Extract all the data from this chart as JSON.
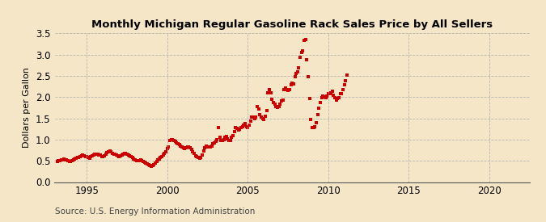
{
  "title": "Monthly Michigan Regular Gasoline Rack Sales Price by All Sellers",
  "ylabel": "Dollars per Gallon",
  "source": "Source: U.S. Energy Information Administration",
  "xlim": [
    1993.0,
    2022.5
  ],
  "ylim": [
    0.0,
    3.5
  ],
  "xticks": [
    1995,
    2000,
    2005,
    2010,
    2015,
    2020
  ],
  "yticks": [
    0.0,
    0.5,
    1.0,
    1.5,
    2.0,
    2.5,
    3.0,
    3.5
  ],
  "background_color": "#f5e6c8",
  "marker_color": "#cc0000",
  "data": [
    [
      1993.17,
      0.49
    ],
    [
      1993.25,
      0.5
    ],
    [
      1993.33,
      0.51
    ],
    [
      1993.42,
      0.52
    ],
    [
      1993.5,
      0.53
    ],
    [
      1993.58,
      0.54
    ],
    [
      1993.67,
      0.53
    ],
    [
      1993.75,
      0.52
    ],
    [
      1993.83,
      0.5
    ],
    [
      1993.92,
      0.49
    ],
    [
      1994.0,
      0.49
    ],
    [
      1994.08,
      0.5
    ],
    [
      1994.17,
      0.52
    ],
    [
      1994.25,
      0.55
    ],
    [
      1994.33,
      0.56
    ],
    [
      1994.42,
      0.57
    ],
    [
      1994.5,
      0.58
    ],
    [
      1994.58,
      0.6
    ],
    [
      1994.67,
      0.62
    ],
    [
      1994.75,
      0.63
    ],
    [
      1994.83,
      0.62
    ],
    [
      1994.92,
      0.6
    ],
    [
      1995.0,
      0.59
    ],
    [
      1995.08,
      0.57
    ],
    [
      1995.17,
      0.56
    ],
    [
      1995.25,
      0.6
    ],
    [
      1995.33,
      0.62
    ],
    [
      1995.42,
      0.63
    ],
    [
      1995.5,
      0.65
    ],
    [
      1995.58,
      0.66
    ],
    [
      1995.67,
      0.65
    ],
    [
      1995.75,
      0.64
    ],
    [
      1995.83,
      0.63
    ],
    [
      1995.92,
      0.6
    ],
    [
      1996.0,
      0.59
    ],
    [
      1996.08,
      0.61
    ],
    [
      1996.17,
      0.65
    ],
    [
      1996.25,
      0.7
    ],
    [
      1996.33,
      0.72
    ],
    [
      1996.42,
      0.73
    ],
    [
      1996.5,
      0.71
    ],
    [
      1996.58,
      0.68
    ],
    [
      1996.67,
      0.66
    ],
    [
      1996.75,
      0.65
    ],
    [
      1996.83,
      0.64
    ],
    [
      1996.92,
      0.62
    ],
    [
      1997.0,
      0.6
    ],
    [
      1997.08,
      0.61
    ],
    [
      1997.17,
      0.63
    ],
    [
      1997.25,
      0.65
    ],
    [
      1997.33,
      0.67
    ],
    [
      1997.42,
      0.68
    ],
    [
      1997.5,
      0.66
    ],
    [
      1997.58,
      0.64
    ],
    [
      1997.67,
      0.62
    ],
    [
      1997.75,
      0.6
    ],
    [
      1997.83,
      0.58
    ],
    [
      1997.92,
      0.55
    ],
    [
      1998.0,
      0.52
    ],
    [
      1998.08,
      0.5
    ],
    [
      1998.17,
      0.5
    ],
    [
      1998.25,
      0.51
    ],
    [
      1998.33,
      0.52
    ],
    [
      1998.42,
      0.51
    ],
    [
      1998.5,
      0.49
    ],
    [
      1998.58,
      0.47
    ],
    [
      1998.67,
      0.45
    ],
    [
      1998.75,
      0.43
    ],
    [
      1998.83,
      0.41
    ],
    [
      1998.92,
      0.38
    ],
    [
      1999.0,
      0.37
    ],
    [
      1999.08,
      0.39
    ],
    [
      1999.17,
      0.41
    ],
    [
      1999.25,
      0.45
    ],
    [
      1999.33,
      0.49
    ],
    [
      1999.42,
      0.52
    ],
    [
      1999.5,
      0.55
    ],
    [
      1999.58,
      0.57
    ],
    [
      1999.67,
      0.6
    ],
    [
      1999.75,
      0.63
    ],
    [
      1999.83,
      0.67
    ],
    [
      1999.92,
      0.72
    ],
    [
      2000.0,
      0.78
    ],
    [
      2000.08,
      0.83
    ],
    [
      2000.17,
      0.97
    ],
    [
      2000.25,
      1.0
    ],
    [
      2000.33,
      1.0
    ],
    [
      2000.42,
      0.98
    ],
    [
      2000.5,
      0.95
    ],
    [
      2000.58,
      0.92
    ],
    [
      2000.67,
      0.9
    ],
    [
      2000.75,
      0.88
    ],
    [
      2000.83,
      0.85
    ],
    [
      2000.92,
      0.83
    ],
    [
      2001.0,
      0.8
    ],
    [
      2001.08,
      0.78
    ],
    [
      2001.17,
      0.8
    ],
    [
      2001.25,
      0.82
    ],
    [
      2001.33,
      0.83
    ],
    [
      2001.42,
      0.8
    ],
    [
      2001.5,
      0.76
    ],
    [
      2001.58,
      0.72
    ],
    [
      2001.67,
      0.67
    ],
    [
      2001.75,
      0.62
    ],
    [
      2001.83,
      0.59
    ],
    [
      2001.92,
      0.57
    ],
    [
      2002.0,
      0.56
    ],
    [
      2002.08,
      0.58
    ],
    [
      2002.17,
      0.63
    ],
    [
      2002.25,
      0.73
    ],
    [
      2002.33,
      0.8
    ],
    [
      2002.42,
      0.84
    ],
    [
      2002.5,
      0.83
    ],
    [
      2002.58,
      0.82
    ],
    [
      2002.67,
      0.83
    ],
    [
      2002.75,
      0.85
    ],
    [
      2002.83,
      0.9
    ],
    [
      2002.92,
      0.92
    ],
    [
      2003.0,
      0.95
    ],
    [
      2003.08,
      1.0
    ],
    [
      2003.17,
      1.28
    ],
    [
      2003.25,
      1.05
    ],
    [
      2003.33,
      0.98
    ],
    [
      2003.42,
      0.97
    ],
    [
      2003.5,
      1.0
    ],
    [
      2003.58,
      1.05
    ],
    [
      2003.67,
      1.08
    ],
    [
      2003.75,
      1.02
    ],
    [
      2003.83,
      0.97
    ],
    [
      2003.92,
      0.97
    ],
    [
      2004.0,
      1.05
    ],
    [
      2004.08,
      1.1
    ],
    [
      2004.17,
      1.18
    ],
    [
      2004.25,
      1.28
    ],
    [
      2004.33,
      1.26
    ],
    [
      2004.42,
      1.23
    ],
    [
      2004.5,
      1.25
    ],
    [
      2004.58,
      1.28
    ],
    [
      2004.67,
      1.3
    ],
    [
      2004.75,
      1.33
    ],
    [
      2004.83,
      1.38
    ],
    [
      2004.92,
      1.3
    ],
    [
      2005.0,
      1.28
    ],
    [
      2005.08,
      1.33
    ],
    [
      2005.17,
      1.43
    ],
    [
      2005.25,
      1.52
    ],
    [
      2005.33,
      1.52
    ],
    [
      2005.42,
      1.5
    ],
    [
      2005.5,
      1.53
    ],
    [
      2005.58,
      1.77
    ],
    [
      2005.67,
      1.72
    ],
    [
      2005.75,
      1.58
    ],
    [
      2005.83,
      1.53
    ],
    [
      2005.92,
      1.5
    ],
    [
      2006.0,
      1.48
    ],
    [
      2006.08,
      1.55
    ],
    [
      2006.17,
      1.68
    ],
    [
      2006.25,
      2.1
    ],
    [
      2006.33,
      2.18
    ],
    [
      2006.42,
      2.1
    ],
    [
      2006.5,
      1.95
    ],
    [
      2006.58,
      1.88
    ],
    [
      2006.67,
      1.83
    ],
    [
      2006.75,
      1.78
    ],
    [
      2006.83,
      1.75
    ],
    [
      2006.92,
      1.78
    ],
    [
      2007.0,
      1.83
    ],
    [
      2007.08,
      1.9
    ],
    [
      2007.17,
      1.93
    ],
    [
      2007.25,
      2.18
    ],
    [
      2007.33,
      2.22
    ],
    [
      2007.42,
      2.18
    ],
    [
      2007.5,
      2.15
    ],
    [
      2007.58,
      2.18
    ],
    [
      2007.67,
      2.28
    ],
    [
      2007.75,
      2.33
    ],
    [
      2007.83,
      2.3
    ],
    [
      2007.92,
      2.48
    ],
    [
      2008.0,
      2.55
    ],
    [
      2008.08,
      2.6
    ],
    [
      2008.17,
      2.68
    ],
    [
      2008.25,
      2.93
    ],
    [
      2008.33,
      3.05
    ],
    [
      2008.42,
      3.08
    ],
    [
      2008.5,
      3.33
    ],
    [
      2008.58,
      3.35
    ],
    [
      2008.67,
      2.87
    ],
    [
      2008.75,
      2.48
    ],
    [
      2008.83,
      1.97
    ],
    [
      2008.92,
      1.47
    ],
    [
      2009.0,
      1.28
    ],
    [
      2009.08,
      1.28
    ],
    [
      2009.17,
      1.3
    ],
    [
      2009.25,
      1.4
    ],
    [
      2009.33,
      1.58
    ],
    [
      2009.42,
      1.73
    ],
    [
      2009.5,
      1.88
    ],
    [
      2009.58,
      1.98
    ],
    [
      2009.67,
      2.03
    ],
    [
      2009.75,
      2.0
    ],
    [
      2009.83,
      1.98
    ],
    [
      2009.92,
      2.03
    ],
    [
      2010.0,
      2.08
    ],
    [
      2010.08,
      2.08
    ],
    [
      2010.17,
      2.1
    ],
    [
      2010.25,
      2.13
    ],
    [
      2010.33,
      2.05
    ],
    [
      2010.42,
      1.98
    ],
    [
      2010.5,
      1.93
    ],
    [
      2010.58,
      1.97
    ],
    [
      2010.67,
      1.98
    ],
    [
      2010.75,
      2.08
    ],
    [
      2010.83,
      2.08
    ],
    [
      2010.92,
      2.18
    ],
    [
      2011.0,
      2.28
    ],
    [
      2011.08,
      2.38
    ],
    [
      2011.17,
      2.52
    ]
  ]
}
